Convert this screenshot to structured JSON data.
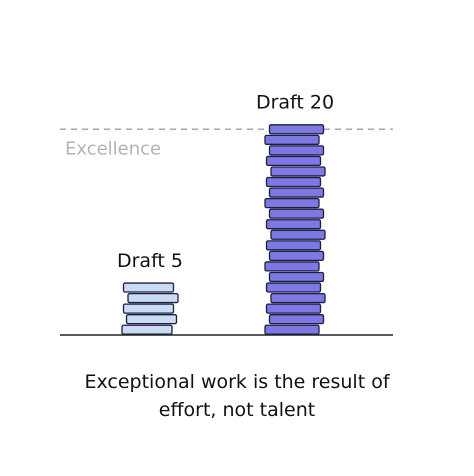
{
  "chart_data": {
    "type": "stack",
    "categories": [
      "Draft 5",
      "Draft 20"
    ],
    "values": [
      5,
      20
    ],
    "colors": [
      "#c9dbf7",
      "#7c78e6"
    ],
    "annotation": {
      "text": "Excellence",
      "value": 19.5
    },
    "caption": "Exceptional work is the result of effort, not talent"
  }
}
